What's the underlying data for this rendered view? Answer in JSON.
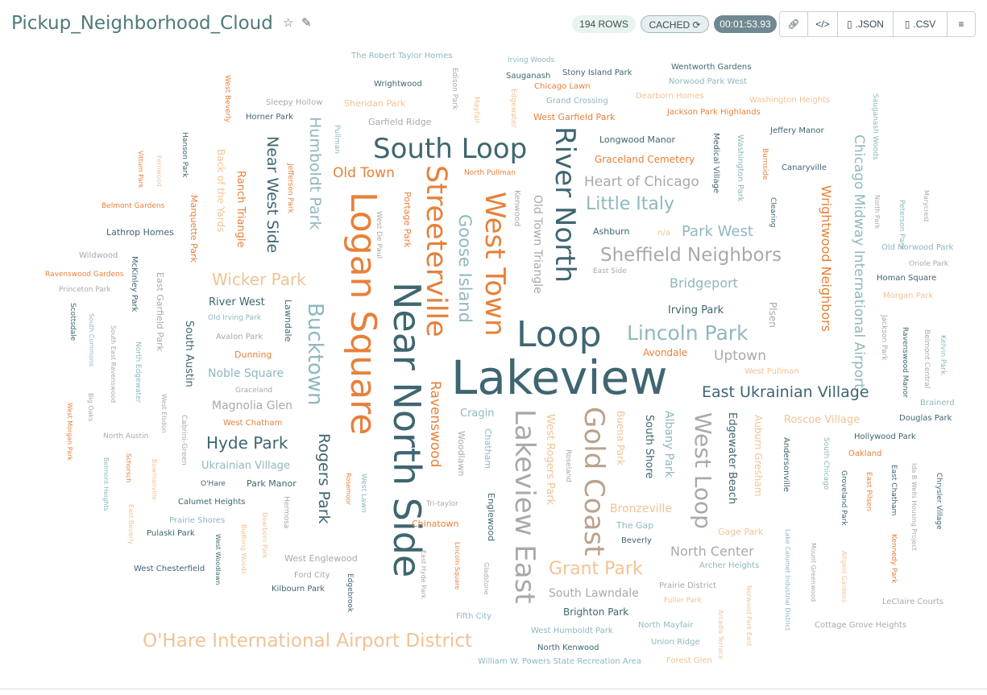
{
  "header": {
    "title": "Pickup_Neighborhood_Cloud",
    "rows_badge": "194 ROWS",
    "cached_badge": "CACHED",
    "timer": "00:01:53.93",
    "buttons": {
      "link_label": "",
      "embed_label": "",
      "json_label": ".JSON",
      "csv_label": ".CSV"
    },
    "icons": [
      "star-icon",
      "edit-icon",
      "refresh-icon",
      "link-icon",
      "code-icon",
      "file-icon",
      "menu-icon"
    ]
  },
  "palette": {
    "dark_teal": "#3e6670",
    "light_teal": "#8fb8bf",
    "orange": "#e8803a",
    "light_orange": "#f0c394",
    "gray": "#a9a9a9",
    "tan": "#b9a28c"
  },
  "cloud": {
    "words": [
      "Lakeview",
      "Near North Side",
      "Logan Square",
      "Loop",
      "South Loop",
      "River North",
      "Streeterville",
      "West Town",
      "Lakeview East",
      "Gold Coast",
      "Bucktown",
      "O'Hare International Airport District",
      "Sheffield Neighbors",
      "Lincoln Park",
      "West Loop",
      "Chicago Midway International Airport",
      "East Ukrainian Village",
      "Wrightwood Neighbors",
      "Heart of Chicago",
      "Little Italy",
      "Goose Island",
      "Humboldt Park",
      "Near West Side",
      "Hyde Park",
      "Wicker Park",
      "Grant Park",
      "Rogers Park",
      "Ravenswood",
      "Old Town Triangle",
      "Park West",
      "Uptown",
      "Old Town",
      "Bridgeport",
      "South Lawndale",
      "North Center",
      "Bronzeville",
      "Noble Square",
      "Magnolia Glen",
      "Ukrainian Village",
      "Albany Park",
      "Edgewater Beach",
      "West Rogers Park",
      "South Shore",
      "Buena Park",
      "Roscoe Village",
      "Auburn Gresham",
      "River West",
      "Lathrop Homes",
      "Irving Park",
      "Avondale",
      "South Austin",
      "Ranch Triangle",
      "Portage Park",
      "Back of the Yards",
      "Marquette Park",
      "Woodlawn",
      "Chatham",
      "Englewood",
      "Cragin",
      "Brighton Park",
      "Graceland Cemetery",
      "West Garfield Park",
      "Longwood Manor",
      "Medical Village",
      "Washington Park",
      "Andersonville",
      "Kenwood",
      "Chinatown",
      "Plsen",
      "Lawndale",
      "Garfield Ridge",
      "Sheridan Park",
      "West Englewood",
      "Hollywood Park",
      "East Garfield Park",
      "Gage Park",
      "Roseland",
      "Archer Heights",
      "Prairie District",
      "Hermosa",
      "West Lawn",
      "Chicago Lawn",
      "Grand Crossing",
      "Dearborn Homes",
      "Washington Heights",
      "Jackson Park Highlands",
      "Jeffery Manor",
      "Canaryville",
      "Ashburn",
      "n/a",
      "North Pullman",
      "Jefferson Park",
      "Clearing",
      "Burnside",
      "West De Paul",
      "Pullman",
      "Edison Park",
      "Mayfair",
      "Edgewater",
      "Irving Woods",
      "Sauganash",
      "Stony Island Park",
      "Wentworth Gardens",
      "Norwood Park West",
      "The Robert Taylor Homes",
      "Wrightwood",
      "Sleepy Hollow",
      "Horner Park",
      "West Beverly",
      "Hanson Park",
      "Fernwood",
      "Vittum Park",
      "Belmont Gardens",
      "Wildwood",
      "Ravenswood Gardens",
      "Princeton Park",
      "McKinley Park",
      "Scottsdale",
      "South Commons",
      "South East Ravenswood",
      "North Edgewater",
      "West Elsdon",
      "Cabrini-Green",
      "Big Oaks",
      "West Morgan Park",
      "Belmont Heights",
      "Schorsch",
      "Bowmanville",
      "Calumet Heights",
      "Prairie Shores",
      "Pulaski Park",
      "East Beverly",
      "Budlong Woods",
      "Dearborn Park",
      "West Woodlawn",
      "West Chesterfield",
      "Ford City",
      "Kilbourn Park",
      "Edgebrook",
      "East Hyde Park",
      "Lincoln Square",
      "Gladstone",
      "Fifth City",
      "West Humboldt Park",
      "North Kenwood",
      "William W. Powers State Recreation Area",
      "North Mayfair",
      "Union Ridge",
      "Forest Glen",
      "Arcadia Terrace",
      "Norwood Park East",
      "Lake Calumet Industrial District",
      "Mount Greenwood",
      "Cottage Grove Heights",
      "Altgeld Gardens",
      "LeClaire Courts",
      "Kennedy Park",
      "Ida B Wells Housing Project",
      "Chrysler Village",
      "East Chatham",
      "East Pilsen",
      "Groveland Park",
      "South Chicago",
      "Oakland",
      "Douglas Park",
      "Brainerd",
      "Kelvin Park",
      "Belmont Central",
      "Ravenswood Manor",
      "Jackson Park",
      "Morgan Park",
      "Homan Square",
      "Oriole Park",
      "Old Norwood Park",
      "Marycrest",
      "North Park",
      "Peterson Park",
      "Sauganash Woods",
      "Tri-taylor",
      "Rosemoor",
      "Park Manor",
      "O'Hare",
      "West Pullman",
      "Graceland",
      "Dunning",
      "Avalon Park",
      "Old Irving Park",
      "East Side",
      "Fuller Park",
      "The Gap",
      "Beverly",
      "West Chatham",
      "North Austin"
    ]
  }
}
